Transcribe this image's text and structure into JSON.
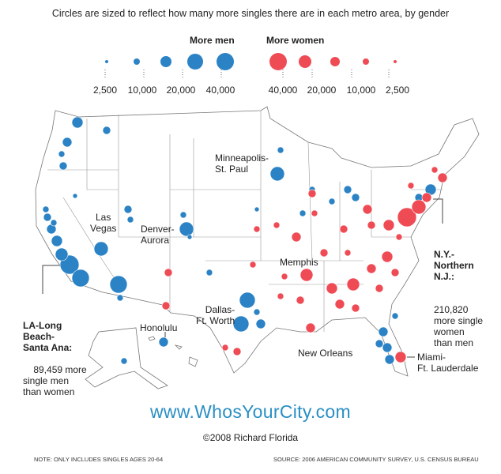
{
  "subtitle": "Circles are sized to reflect how many more singles there are in each metro area, by gender",
  "legend": {
    "men": {
      "title": "More men",
      "color": "#2b83c6",
      "values": [
        "2,500",
        "10,000",
        "20,000",
        "40,000"
      ]
    },
    "women": {
      "title": "More women",
      "color": "#ef4b55",
      "values": [
        "40,000",
        "20,000",
        "10,000",
        "2,500"
      ]
    }
  },
  "labels": {
    "minneapolis": "Minneapolis-\nSt. Paul",
    "las_vegas": "Las\nVegas",
    "denver": "Denver-\nAurora",
    "memphis": "Memphis",
    "dallas": "Dallas-\nFt. Worth",
    "honolulu": "Honolulu",
    "new_orleans": "New Orleans",
    "miami": "Miami-\nFt. Lauderdale"
  },
  "callouts": {
    "la": {
      "name": "LA-Long\nBeach-\nSanta Ana:",
      "value": "89,459",
      "text": "more\nsingle men\nthan women"
    },
    "ny": {
      "name": "N.Y.-\nNorthern\nN.J.:",
      "value": "210,820",
      "text": "more single\nwomen\nthan men"
    }
  },
  "url": "www.WhosYourCity.com",
  "copyright": "©2008 Richard Florida",
  "note": "NOTE: ONLY INCLUDES SINGLES AGES 20-64",
  "source": "SOURCE: 2006 AMERICAN COMMUNITY SURVEY, U.S. CENSUS BUREAU"
}
